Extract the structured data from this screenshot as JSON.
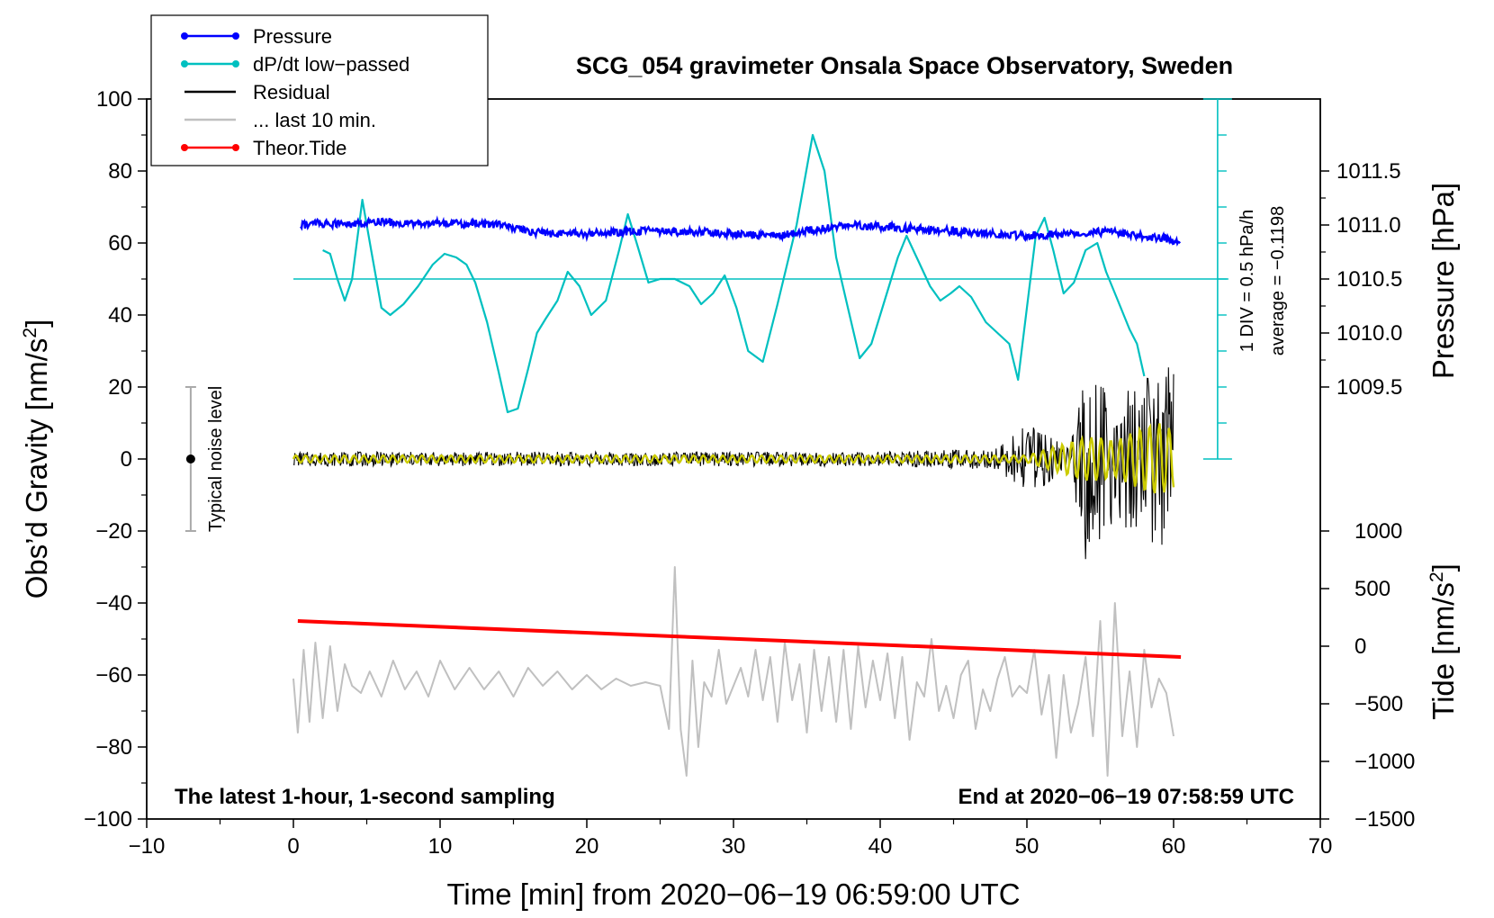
{
  "chart_data": {
    "type": "line",
    "title": "SCG_054 gravimeter Onsala Space Observatory, Sweden",
    "xlabel": "Time [min] from 2020−06−19 06:59:00 UTC",
    "ylabel_prefix": "Obs’d Gravity [nm/s",
    "ylabel_sup": "2",
    "ylabel_suffix": "]",
    "xlim": [
      -10,
      70
    ],
    "ylim": [
      -100,
      100
    ],
    "x_ticks": [
      -10,
      0,
      10,
      20,
      30,
      40,
      50,
      60,
      70
    ],
    "x_tick_labels": [
      "−10",
      "0",
      "10",
      "20",
      "30",
      "40",
      "50",
      "60",
      "70"
    ],
    "y_ticks": [
      -100,
      -80,
      -60,
      -40,
      -20,
      0,
      20,
      40,
      60,
      80,
      100
    ],
    "y_tick_labels": [
      "−100",
      "−80",
      "−60",
      "−40",
      "−20",
      "0",
      "20",
      "40",
      "60",
      "80",
      "100"
    ],
    "pressure_axis": {
      "label": "Pressure [hPa]",
      "ticks": [
        1009.5,
        1010.0,
        1010.5,
        1011.0,
        1011.5
      ],
      "tick_labels": [
        "1009.5",
        "1010.0",
        "1010.5",
        "1011.0",
        "1011.5"
      ],
      "mapping": {
        "hpa": [
          1009.5,
          1011.5
        ],
        "gravity": [
          20,
          80
        ]
      }
    },
    "tide_axis": {
      "label_prefix": "Tide [nm/s",
      "label_sup": "2",
      "label_suffix": "]",
      "ticks": [
        -1500,
        -1000,
        -500,
        0,
        500,
        1000
      ],
      "tick_labels": [
        "−1500",
        "−1000",
        "−500",
        "0",
        "500",
        "1000"
      ],
      "mapping": {
        "tide": [
          -1500,
          1000
        ],
        "gravity": [
          -100,
          -20
        ]
      }
    },
    "dpdt_scale": {
      "div_label": "1 DIV = 0.5 hPa/h",
      "average_label": "average = −0.1198",
      "x": 63,
      "y_range": [
        0,
        100
      ],
      "divisions": 10,
      "baseline": 50
    },
    "noise_bar": {
      "label": "Typical noise level",
      "x": -7,
      "center": 0,
      "low": -20,
      "high": 20
    },
    "footer_left": "The latest 1-hour, 1-second sampling",
    "footer_right": "End at 2020−06−19 07:58:59 UTC",
    "legend": [
      {
        "label": "Pressure",
        "color": "#0000ff",
        "marker": true
      },
      {
        "label": "dP/dt low−passed",
        "color": "#00c0c0",
        "marker": true
      },
      {
        "label": "Residual",
        "color": "#000000",
        "marker": false
      },
      {
        "label": "... last 10 min.",
        "color": "#c0c0c0",
        "marker": false
      },
      {
        "label": "Theor.Tide",
        "color": "#ff0000",
        "marker": true
      }
    ],
    "series": [
      {
        "name": "Pressure",
        "color": "#0000ff",
        "x": [
          0.5,
          2,
          4,
          6,
          8,
          10,
          12,
          14,
          15.5,
          16,
          18,
          20,
          22,
          24,
          26,
          28,
          30,
          32,
          34,
          36,
          38,
          40,
          42,
          44,
          46,
          48,
          50,
          52,
          54,
          56,
          58,
          60.5
        ],
        "y": [
          65,
          65.5,
          65,
          66,
          65.5,
          65.5,
          65.5,
          65,
          64,
          63,
          62.5,
          62.5,
          63,
          63.5,
          63,
          63,
          62.5,
          62,
          62.5,
          64,
          65,
          64.5,
          64,
          63.5,
          63,
          62.5,
          62,
          62.5,
          63,
          63,
          62,
          60.5
        ]
      },
      {
        "name": "dP/dt low−passed",
        "color": "#00c0c0",
        "x": [
          2,
          2.5,
          3,
          3.5,
          4,
          4.7,
          5.3,
          6,
          6.6,
          7.5,
          8.5,
          9.5,
          10.3,
          11.1,
          11.8,
          12.4,
          13.2,
          14,
          14.6,
          15.3,
          16,
          16.6,
          17.2,
          18,
          18.7,
          19.5,
          20.3,
          21.3,
          22.2,
          22.8,
          23.4,
          24.2,
          25,
          26,
          27,
          27.8,
          28.6,
          29.4,
          30.2,
          31,
          32,
          33,
          34.3,
          35.4,
          36.2,
          37,
          37.8,
          38.6,
          39.4,
          40.3,
          41.2,
          41.8,
          42.6,
          43.4,
          44.1,
          44.8,
          45.4,
          46.2,
          47.2,
          48,
          48.8,
          49.4,
          50,
          50.6,
          51.2,
          51.8,
          52.5,
          53.2,
          54,
          54.8,
          55.4,
          56.2,
          57,
          57.5,
          58
        ],
        "y": [
          58,
          57,
          50,
          44,
          50,
          72,
          58,
          42,
          40,
          43,
          48,
          54,
          57,
          56,
          54,
          49,
          38,
          24,
          13,
          14,
          25,
          35,
          39,
          44,
          52,
          48,
          40,
          44,
          58,
          68,
          60,
          49,
          50,
          50,
          48,
          43,
          46,
          51,
          42,
          30,
          27,
          43,
          65,
          90,
          80,
          56,
          42,
          28,
          32,
          44,
          56,
          62,
          55,
          48,
          44,
          46,
          48,
          45,
          38,
          35,
          32,
          22,
          42,
          62,
          67,
          58,
          46,
          49,
          58,
          60,
          52,
          44,
          36,
          32,
          23
        ]
      },
      {
        "name": "Residual",
        "color": "#000000",
        "x": [
          0,
          10,
          20,
          30,
          40,
          48,
          50,
          51,
          52,
          53,
          54,
          55,
          56,
          57,
          58,
          59,
          60
        ],
        "y": [
          0,
          0,
          0,
          0,
          0,
          0,
          0,
          0,
          0,
          0,
          0,
          0,
          0,
          0,
          0,
          0,
          0
        ],
        "envelope": [
          2,
          2,
          2,
          2,
          2,
          3,
          10,
          8,
          5,
          4,
          28,
          22,
          18,
          20,
          22,
          25,
          26
        ]
      },
      {
        "name": "Residual (smoothed)",
        "color": "#cccc00",
        "x": [
          0,
          10,
          20,
          30,
          40,
          50,
          54,
          55,
          56,
          57,
          58,
          59,
          60
        ],
        "y": [
          0,
          0,
          0,
          0,
          0,
          0,
          0,
          0,
          0,
          0,
          0,
          0,
          0
        ],
        "envelope": [
          1,
          1,
          1,
          1,
          1,
          1,
          6,
          6,
          5,
          7,
          9,
          10,
          8
        ]
      },
      {
        "name": "... last 10 min.",
        "color": "#c0c0c0",
        "x": [
          0,
          0.3,
          0.7,
          1.1,
          1.5,
          2,
          2.5,
          3,
          3.5,
          4,
          4.6,
          5.2,
          6,
          6.8,
          7.6,
          8.4,
          9.2,
          10,
          11,
          12,
          13,
          14,
          15,
          16,
          17,
          18,
          19,
          20,
          21,
          22,
          23,
          24,
          25,
          25.6,
          26,
          26.4,
          26.8,
          27.2,
          27.6,
          28,
          28.5,
          29,
          29.5,
          30,
          30.5,
          31,
          31.5,
          32,
          32.5,
          33,
          33.5,
          34,
          34.5,
          35,
          35.5,
          36,
          36.5,
          37,
          37.5,
          38,
          38.5,
          39,
          39.5,
          40,
          40.5,
          41,
          41.5,
          42,
          42.5,
          43,
          43.5,
          44,
          44.5,
          45,
          45.5,
          46,
          46.5,
          47,
          47.5,
          48,
          48.5,
          49,
          49.5,
          50,
          50.5,
          51,
          51.5,
          52,
          52.5,
          53,
          53.5,
          54,
          54.5,
          55,
          55.5,
          56,
          56.5,
          57,
          57.5,
          58,
          58.5,
          59,
          59.5,
          60
        ],
        "y": [
          -61,
          -76,
          -53,
          -73,
          -51,
          -72,
          -52,
          -70,
          -57,
          -63,
          -65,
          -59,
          -66,
          -56,
          -64,
          -59,
          -66,
          -56,
          -64,
          -58,
          -64,
          -59,
          -66,
          -58,
          -63,
          -59,
          -64,
          -60,
          -64,
          -61,
          -63,
          -62,
          -63,
          -75,
          -30,
          -75,
          -88,
          -56,
          -80,
          -62,
          -66,
          -53,
          -68,
          -63,
          -58,
          -66,
          -53,
          -67,
          -55,
          -73,
          -51,
          -67,
          -57,
          -76,
          -53,
          -70,
          -55,
          -73,
          -53,
          -75,
          -52,
          -69,
          -56,
          -67,
          -54,
          -72,
          -55,
          -78,
          -62,
          -66,
          -50,
          -70,
          -63,
          -72,
          -60,
          -56,
          -75,
          -64,
          -70,
          -61,
          -55,
          -66,
          -63,
          -65,
          -53,
          -71,
          -60,
          -83,
          -60,
          -76,
          -68,
          -55,
          -77,
          -45,
          -88,
          -40,
          -77,
          -59,
          -80,
          -53,
          -69,
          -61,
          -65,
          -77
        ]
      },
      {
        "name": "Theor.Tide",
        "color": "#ff0000",
        "x": [
          0.3,
          60.5
        ],
        "y": [
          -45,
          -55
        ]
      }
    ]
  }
}
